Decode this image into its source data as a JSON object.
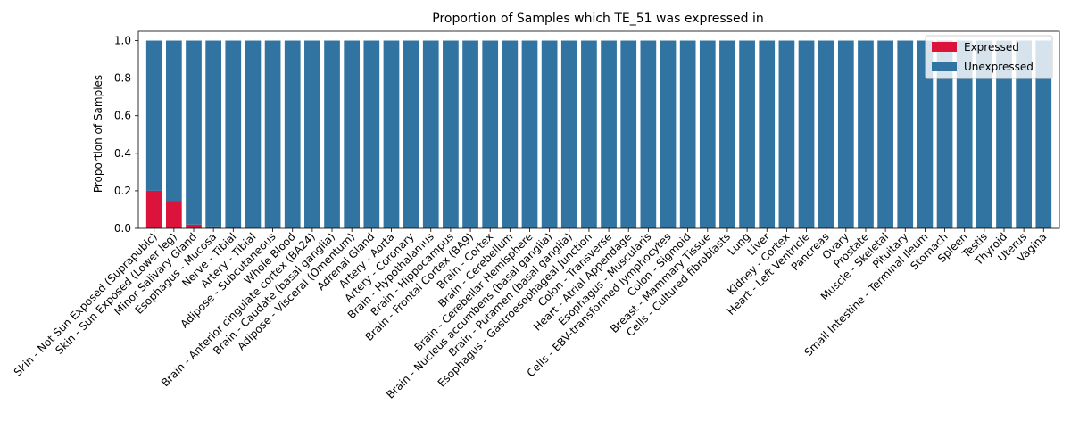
{
  "chart_data": {
    "type": "bar",
    "stacked": true,
    "title": "Proportion of Samples which TE_51 was expressed in",
    "xlabel": "",
    "ylabel": "Proportion of Samples",
    "ylim": [
      0,
      1.05
    ],
    "yticks": [
      "0.0",
      "0.2",
      "0.4",
      "0.6",
      "0.8",
      "1.0"
    ],
    "yticks_values": [
      0,
      0.2,
      0.4,
      0.6,
      0.8,
      1.0
    ],
    "grid": false,
    "legend_position": "top-right",
    "categories": [
      "Skin - Not Sun Exposed (Suprapubic)",
      "Skin - Sun Exposed (Lower leg)",
      "Minor Salivary Gland",
      "Esophagus - Mucosa",
      "Nerve - Tibial",
      "Artery - Tibial",
      "Adipose - Subcutaneous",
      "Whole Blood",
      "Brain - Anterior cingulate cortex (BA24)",
      "Brain - Caudate (basal ganglia)",
      "Adipose - Visceral (Omentum)",
      "Adrenal Gland",
      "Artery - Aorta",
      "Artery - Coronary",
      "Brain - Hypothalamus",
      "Brain - Hippocampus",
      "Brain - Frontal Cortex (BA9)",
      "Brain - Cortex",
      "Brain - Cerebellum",
      "Brain - Cerebellar Hemisphere",
      "Brain - Nucleus accumbens (basal ganglia)",
      "Brain - Putamen (basal ganglia)",
      "Esophagus - Gastroesophageal Junction",
      "Colon - Transverse",
      "Heart - Atrial Appendage",
      "Esophagus - Muscularis",
      "Cells - EBV-transformed lymphocytes",
      "Colon - Sigmoid",
      "Breast - Mammary Tissue",
      "Cells - Cultured fibroblasts",
      "Lung",
      "Liver",
      "Kidney - Cortex",
      "Heart - Left Ventricle",
      "Pancreas",
      "Ovary",
      "Prostate",
      "Muscle - Skeletal",
      "Pituitary",
      "Small Intestine - Terminal Ileum",
      "Stomach",
      "Spleen",
      "Testis",
      "Thyroid",
      "Uterus",
      "Vagina"
    ],
    "series": [
      {
        "name": "Expressed",
        "color": "#dc143c",
        "values": [
          0.2,
          0.145,
          0.02,
          0.01,
          0.008,
          0,
          0,
          0,
          0,
          0,
          0,
          0,
          0,
          0,
          0,
          0,
          0,
          0,
          0,
          0,
          0,
          0,
          0,
          0,
          0,
          0,
          0,
          0,
          0,
          0,
          0,
          0,
          0,
          0,
          0,
          0,
          0,
          0,
          0,
          0,
          0,
          0,
          0,
          0,
          0,
          0
        ]
      },
      {
        "name": "Unexpressed",
        "color": "#3274a1",
        "values": [
          0.8,
          0.855,
          0.98,
          0.99,
          0.992,
          1,
          1,
          1,
          1,
          1,
          1,
          1,
          1,
          1,
          1,
          1,
          1,
          1,
          1,
          1,
          1,
          1,
          1,
          1,
          1,
          1,
          1,
          1,
          1,
          1,
          1,
          1,
          1,
          1,
          1,
          1,
          1,
          1,
          1,
          1,
          1,
          1,
          1,
          1,
          1,
          1
        ]
      }
    ]
  }
}
